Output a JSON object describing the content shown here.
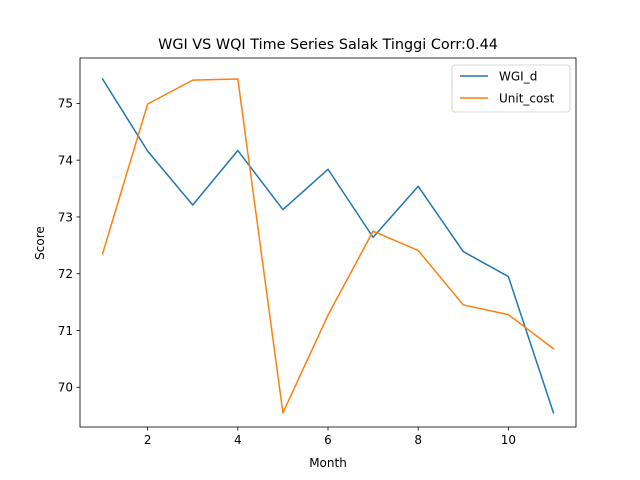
{
  "chart_data": {
    "type": "line",
    "title": "WGI VS WQI Time Series Salak Tinggi Corr:0.44",
    "xlabel": "Month",
    "ylabel": "Score",
    "xlim": [
      0.5,
      11.5
    ],
    "ylim": [
      69.3,
      75.8
    ],
    "xticks": [
      2,
      4,
      6,
      8,
      10
    ],
    "yticks": [
      70,
      71,
      72,
      73,
      74,
      75
    ],
    "grid": false,
    "legend_position": "top-right",
    "x": [
      1,
      2,
      3,
      4,
      5,
      6,
      7,
      8,
      9,
      10,
      11
    ],
    "series": [
      {
        "name": "WGI_d",
        "color": "#1f77b4",
        "values": [
          75.43,
          74.16,
          73.21,
          74.17,
          73.13,
          73.84,
          72.64,
          73.54,
          72.39,
          71.95,
          69.55
        ]
      },
      {
        "name": "Unit_cost",
        "color": "#ff7f0e",
        "values": [
          72.35,
          74.99,
          75.41,
          75.43,
          69.55,
          71.27,
          72.75,
          72.41,
          71.45,
          71.28,
          70.68
        ]
      }
    ]
  }
}
